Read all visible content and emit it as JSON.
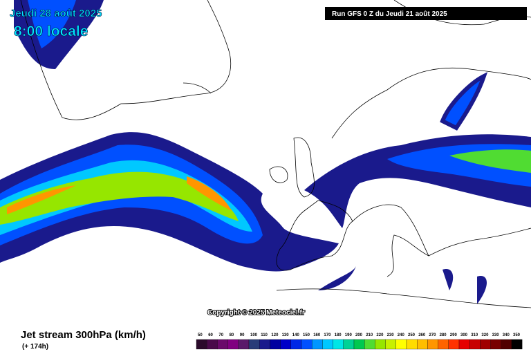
{
  "header": {
    "date": "Jeudi 28 août 2025",
    "time": "8:00 locale",
    "run": "Run GFS 0 Z du Jeudi 21 août 2025"
  },
  "copyright": "Copyright © 2025 Meteociel.fr",
  "footer": {
    "title": "Jet stream 300hPa (km/h)",
    "lead": "(+ 174h)"
  },
  "legend": {
    "levels": [
      50,
      60,
      70,
      80,
      90,
      100,
      110,
      120,
      130,
      140,
      150,
      160,
      170,
      180,
      190,
      200,
      210,
      220,
      230,
      240,
      250,
      260,
      270,
      280,
      290,
      300,
      310,
      320,
      330,
      340,
      350
    ],
    "colors": [
      "#2b0a2b",
      "#4a0a4a",
      "#6a0a6a",
      "#800080",
      "#5a1a6a",
      "#283c78",
      "#1a1a8c",
      "#0000a0",
      "#0000c8",
      "#0028e6",
      "#0050ff",
      "#0096ff",
      "#00c8ff",
      "#00e6e6",
      "#00d296",
      "#00c850",
      "#50dc32",
      "#96e600",
      "#c8f000",
      "#ffff00",
      "#ffdc00",
      "#ffbe00",
      "#ff9600",
      "#ff6400",
      "#ff3200",
      "#e60000",
      "#c80000",
      "#a00000",
      "#780000",
      "#500000",
      "#000000"
    ]
  }
}
